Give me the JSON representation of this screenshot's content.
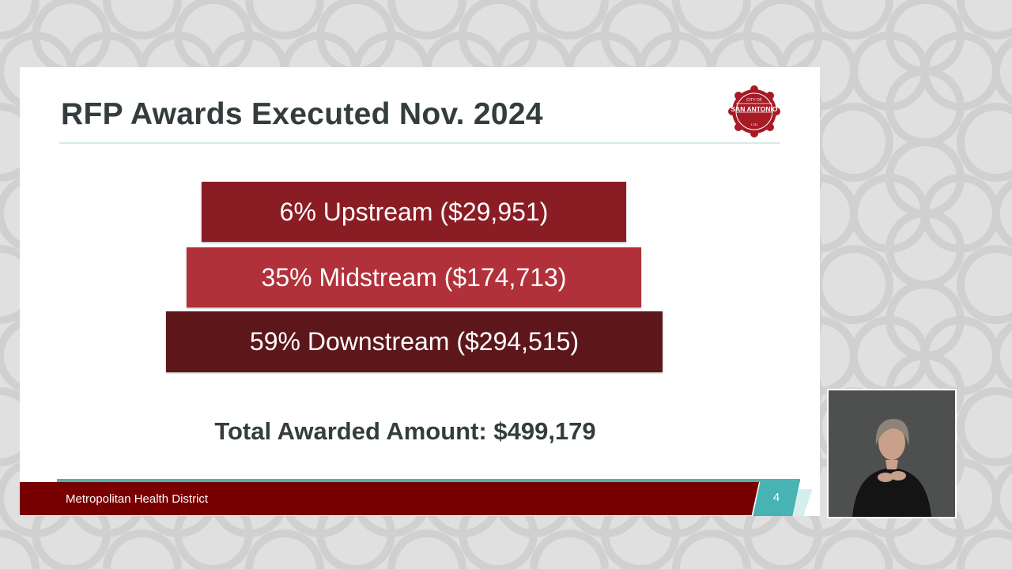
{
  "slide": {
    "title": "RFP Awards Executed Nov. 2024",
    "logo": {
      "top_text": "CITY OF",
      "name": "SAN ANTONIO",
      "year": "1731",
      "color": "#a61b26"
    },
    "tiers": [
      {
        "label": "6% Upstream ($29,951)",
        "percent": 6,
        "amount": 29951,
        "color": "#8a1c24"
      },
      {
        "label": "35% Midstream ($174,713)",
        "percent": 35,
        "amount": 174713,
        "color": "#b1313a"
      },
      {
        "label": "59% Downstream ($294,515)",
        "percent": 59,
        "amount": 294515,
        "color": "#5d171b"
      }
    ],
    "total_label": "Total Awarded Amount: $499,179",
    "footer": {
      "org": "Metropolitan Health District",
      "page_number": "4"
    }
  },
  "colors": {
    "footer_bar": "#780000",
    "accent_teal": "#47b3b3",
    "title_text": "#333d3d"
  },
  "interpreter_video": {
    "icon": "sign-language-interpreter-video"
  }
}
